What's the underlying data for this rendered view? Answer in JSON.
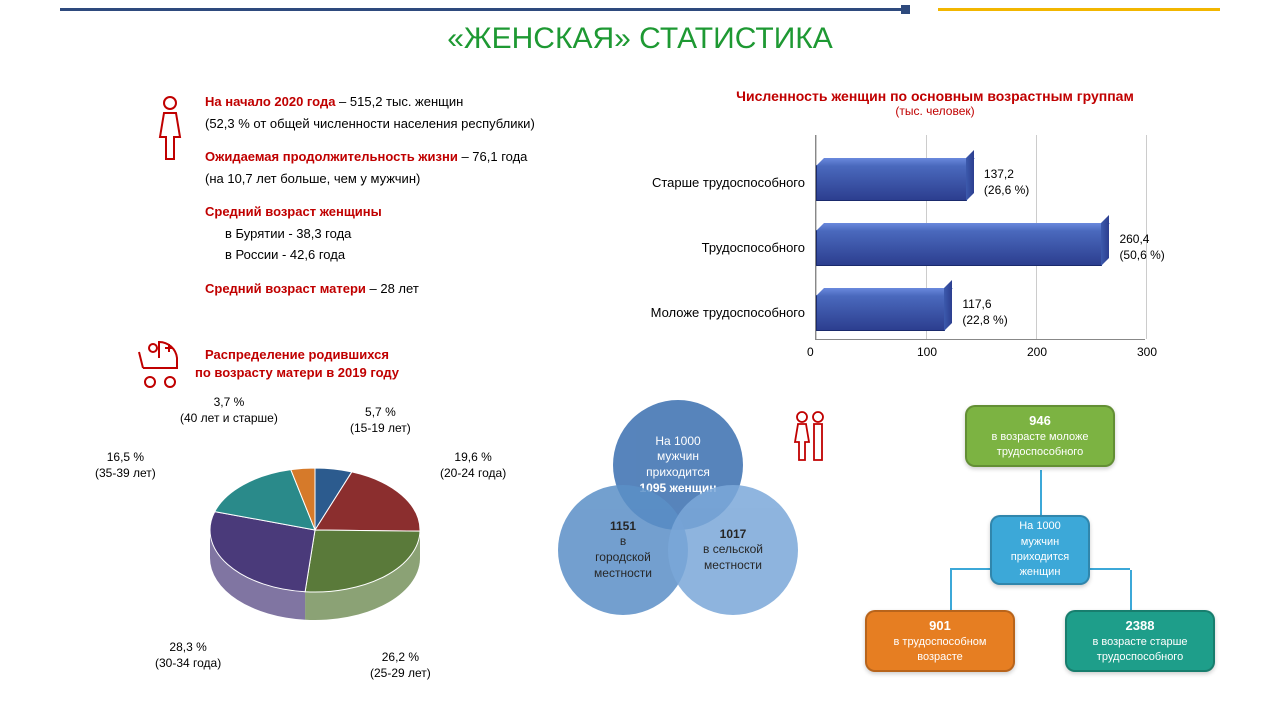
{
  "title": "«ЖЕНСКАЯ» СТАТИСТИКА",
  "title_color": "#1e9933",
  "accent_red": "#c00000",
  "facts": {
    "l1a": "На начало 2020 года",
    "l1b": "  – 515,2 тыс. женщин",
    "l2": "(52,3 % от общей численности населения республики)",
    "l3a": "Ожидаемая продолжительность жизни",
    "l3b": " – 76,1 года",
    "l4": "(на 10,7 лет больше, чем у мужчин)",
    "l5": "Средний возраст женщины",
    "l6": "в Бурятии  - 38,3 года",
    "l7": "в России   - 42,6 года",
    "l8a": "Средний возраст матери",
    "l8b": " – 28 лет"
  },
  "barchart": {
    "title": "Численность женщин по основным возрастным группам",
    "subtitle": "(тыс. человек)",
    "type": "horizontal-bar-3d",
    "bar_color": "#3b5998",
    "xlim": [
      0,
      300
    ],
    "ticks": [
      0,
      100,
      200,
      300
    ],
    "categories": [
      {
        "label": "Старше трудоспособного",
        "value": 137.2,
        "value_label": "137,2",
        "pct_label": "(26,6 %)"
      },
      {
        "label": "Трудоспособного",
        "value": 260.4,
        "value_label": "260,4",
        "pct_label": "(50,6 %)"
      },
      {
        "label": "Моложе трудоспособного",
        "value": 117.6,
        "value_label": "117,6",
        "pct_label": "(22,8 %)"
      }
    ]
  },
  "pie": {
    "title_l1": "Распределение родившихся",
    "title_l2": "по возрасту матери в 2019 году",
    "type": "pie-3d",
    "slices": [
      {
        "label_pct": "5,7 %",
        "label_age": "(15-19 лет)",
        "value": 5.7,
        "color": "#2c5b8e"
      },
      {
        "label_pct": "19,6 %",
        "label_age": "(20-24 года)",
        "value": 19.6,
        "color": "#8b2e2e"
      },
      {
        "label_pct": "26,2 %",
        "label_age": "(25-29 лет)",
        "value": 26.2,
        "color": "#5a7a3a"
      },
      {
        "label_pct": "28,3 %",
        "label_age": "(30-34 года)",
        "value": 28.3,
        "color": "#4a3a7a"
      },
      {
        "label_pct": "16,5 %",
        "label_age": "(35-39 лет)",
        "value": 16.5,
        "color": "#2a8a8a"
      },
      {
        "label_pct": "3,7 %",
        "label_age": "(40 лет и старше)",
        "value": 3.7,
        "color": "#d67a2a"
      }
    ]
  },
  "venn": {
    "top": {
      "l1": "На 1000",
      "l2": "мужчин",
      "l3": "приходится",
      "l4": "1095 женщин"
    },
    "left": {
      "num": "1151",
      "l1": "в",
      "l2": "городской",
      "l3": "местности"
    },
    "right": {
      "num": "1017",
      "l1": "в сельской",
      "l2": "местности"
    }
  },
  "diagram": {
    "center": {
      "l1": "На 1000",
      "l2": "мужчин",
      "l3": "приходится",
      "l4": "женщин",
      "color": "#3ca8d8"
    },
    "top": {
      "num": "946",
      "l1": "в возрасте моложе",
      "l2": "трудоспособного",
      "color": "#7cb342"
    },
    "left": {
      "num": "901",
      "l1": "в трудоспособном",
      "l2": "возрасте",
      "color": "#e67e22"
    },
    "right": {
      "num": "2388",
      "l1": "в возрасте старше",
      "l2": "трудоспособного",
      "color": "#1e9e8a"
    }
  }
}
